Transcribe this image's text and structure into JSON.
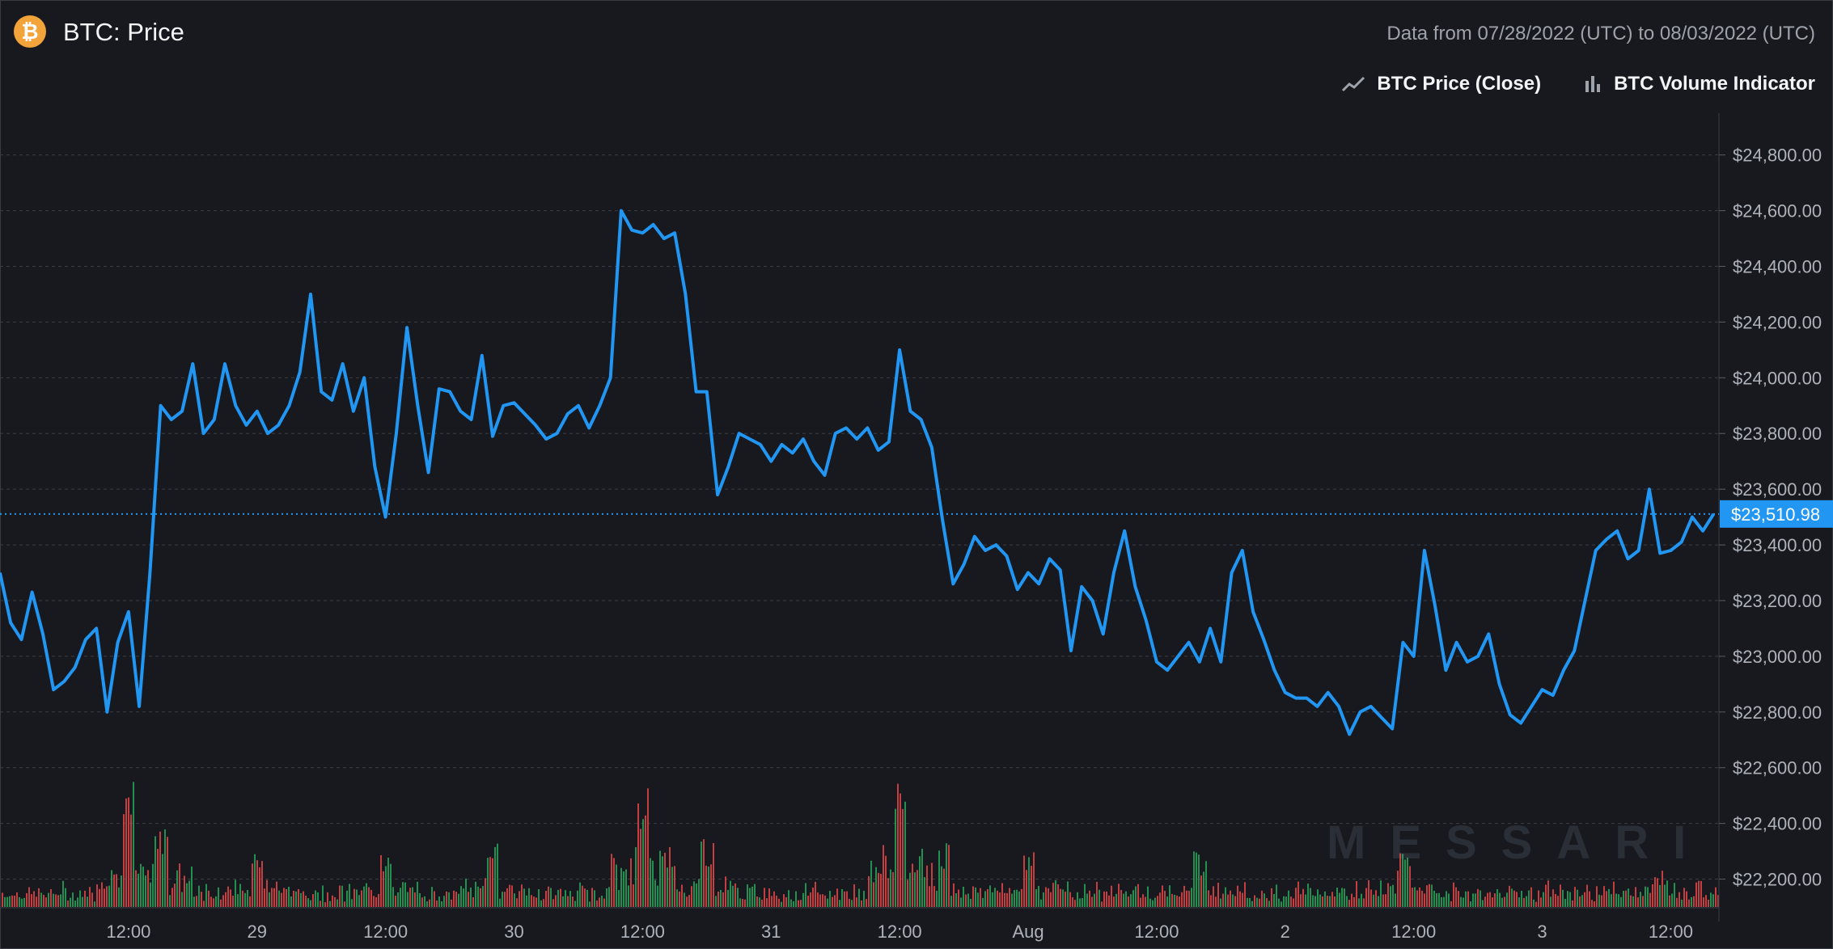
{
  "header": {
    "logo_glyph": "₿",
    "title": "BTC: Price",
    "date_range": "Data from 07/28/2022 (UTC) to 08/03/2022 (UTC)"
  },
  "legend": {
    "price_label": "BTC Price (Close)",
    "volume_label": "BTC Volume Indicator",
    "price_icon": "line-chart-icon",
    "volume_icon": "bar-chart-icon"
  },
  "watermark": "MESSARI",
  "colors": {
    "background": "#18191e",
    "price_line": "#2196f3",
    "volume_up": "#26a65b",
    "volume_down": "#e04848",
    "last_price_badge": "#2196f3",
    "grid": "#3a3d46"
  },
  "chart_data": {
    "type": "line",
    "title": "BTC: Price",
    "ylim": [
      22100,
      24950
    ],
    "y_ticks": [
      "$22,200.00",
      "$22,400.00",
      "$22,600.00",
      "$22,800.00",
      "$23,000.00",
      "$23,200.00",
      "$23,400.00",
      "$23,600.00",
      "$23,800.00",
      "$24,000.00",
      "$24,200.00",
      "$24,400.00",
      "$24,600.00",
      "$24,800.00"
    ],
    "y_tick_values": [
      22200,
      22400,
      22600,
      22800,
      23000,
      23200,
      23400,
      23600,
      23800,
      24000,
      24200,
      24400,
      24600,
      24800
    ],
    "x_ticks": [
      "12:00",
      "29",
      "12:00",
      "30",
      "12:00",
      "31",
      "12:00",
      "Aug",
      "12:00",
      "2",
      "12:00",
      "3",
      "12:00"
    ],
    "x_tick_hours": [
      12,
      24,
      36,
      48,
      60,
      72,
      84,
      96,
      108,
      120,
      132,
      144,
      156
    ],
    "x_start_label": "07/28/2022 00:00 UTC",
    "last_price": 23510.98,
    "last_price_label": "$23,510.98",
    "grid": true,
    "series": [
      {
        "name": "BTC Price (Close)",
        "x_hours": [
          0,
          1,
          2,
          3,
          4,
          5,
          6,
          7,
          8,
          9,
          10,
          11,
          12,
          13,
          14,
          15,
          16,
          17,
          18,
          19,
          20,
          21,
          22,
          23,
          24,
          25,
          26,
          27,
          28,
          29,
          30,
          31,
          32,
          33,
          34,
          35,
          36,
          37,
          38,
          39,
          40,
          41,
          42,
          43,
          44,
          45,
          46,
          47,
          48,
          49,
          50,
          51,
          52,
          53,
          54,
          55,
          56,
          57,
          58,
          59,
          60,
          61,
          62,
          63,
          64,
          65,
          66,
          67,
          68,
          69,
          70,
          71,
          72,
          73,
          74,
          75,
          76,
          77,
          78,
          79,
          80,
          81,
          82,
          83,
          84,
          85,
          86,
          87,
          88,
          89,
          90,
          91,
          92,
          93,
          94,
          95,
          96,
          97,
          98,
          99,
          100,
          101,
          102,
          103,
          104,
          105,
          106,
          107,
          108,
          109,
          110,
          111,
          112,
          113,
          114,
          115,
          116,
          117,
          118,
          119,
          120,
          121,
          122,
          123,
          124,
          125,
          126,
          127,
          128,
          129,
          130,
          131,
          132,
          133,
          134,
          135,
          136,
          137,
          138,
          139,
          140,
          141,
          142,
          143,
          144,
          145,
          146,
          147,
          148,
          149,
          150,
          151,
          152,
          153,
          154,
          155,
          156,
          157,
          158,
          159,
          160
        ],
        "values": [
          23300,
          23120,
          23060,
          23230,
          23080,
          22880,
          22910,
          22960,
          23060,
          23100,
          22800,
          23050,
          23160,
          22820,
          23300,
          23900,
          23850,
          23880,
          24050,
          23800,
          23850,
          24050,
          23900,
          23830,
          23880,
          23800,
          23830,
          23900,
          24020,
          24300,
          23950,
          23920,
          24050,
          23880,
          24000,
          23680,
          23500,
          23800,
          24180,
          23900,
          23660,
          23960,
          23950,
          23880,
          23850,
          24080,
          23790,
          23900,
          23910,
          23870,
          23830,
          23780,
          23800,
          23870,
          23900,
          23820,
          23900,
          24000,
          24600,
          24530,
          24520,
          24550,
          24500,
          24520,
          24300,
          23950,
          23950,
          23580,
          23680,
          23800,
          23780,
          23760,
          23700,
          23760,
          23730,
          23780,
          23700,
          23650,
          23800,
          23820,
          23780,
          23820,
          23740,
          23770,
          24100,
          23880,
          23850,
          23750,
          23490,
          23260,
          23330,
          23430,
          23380,
          23400,
          23360,
          23240,
          23300,
          23260,
          23350,
          23310,
          23020,
          23250,
          23200,
          23080,
          23300,
          23450,
          23250,
          23130,
          22980,
          22950,
          23000,
          23050,
          22980,
          23100,
          22980,
          23300,
          23380,
          23160,
          23060,
          22950,
          22870,
          22850,
          22850,
          22820,
          22870,
          22820,
          22720,
          22800,
          22820,
          22780,
          22740,
          23050,
          23000,
          23380,
          23180,
          22950,
          23050,
          22980,
          23000,
          23080,
          22900,
          22790,
          22760,
          22820,
          22880,
          22860,
          22950,
          23020,
          23200,
          23380,
          23420,
          23450,
          23350,
          23380,
          23600,
          23370,
          23380,
          23410,
          23500,
          23450,
          23510.98
        ]
      },
      {
        "name": "BTC Volume Indicator",
        "type": "bar",
        "note_levels": "relative",
        "spike_hours": [
          12,
          15,
          24,
          36,
          46,
          60,
          66,
          84,
          88,
          96,
          112,
          131,
          155
        ],
        "spike_heights": [
          0.85,
          0.65,
          0.45,
          0.4,
          0.45,
          0.92,
          0.5,
          0.9,
          0.45,
          0.4,
          0.4,
          0.4,
          0.25
        ]
      }
    ]
  }
}
